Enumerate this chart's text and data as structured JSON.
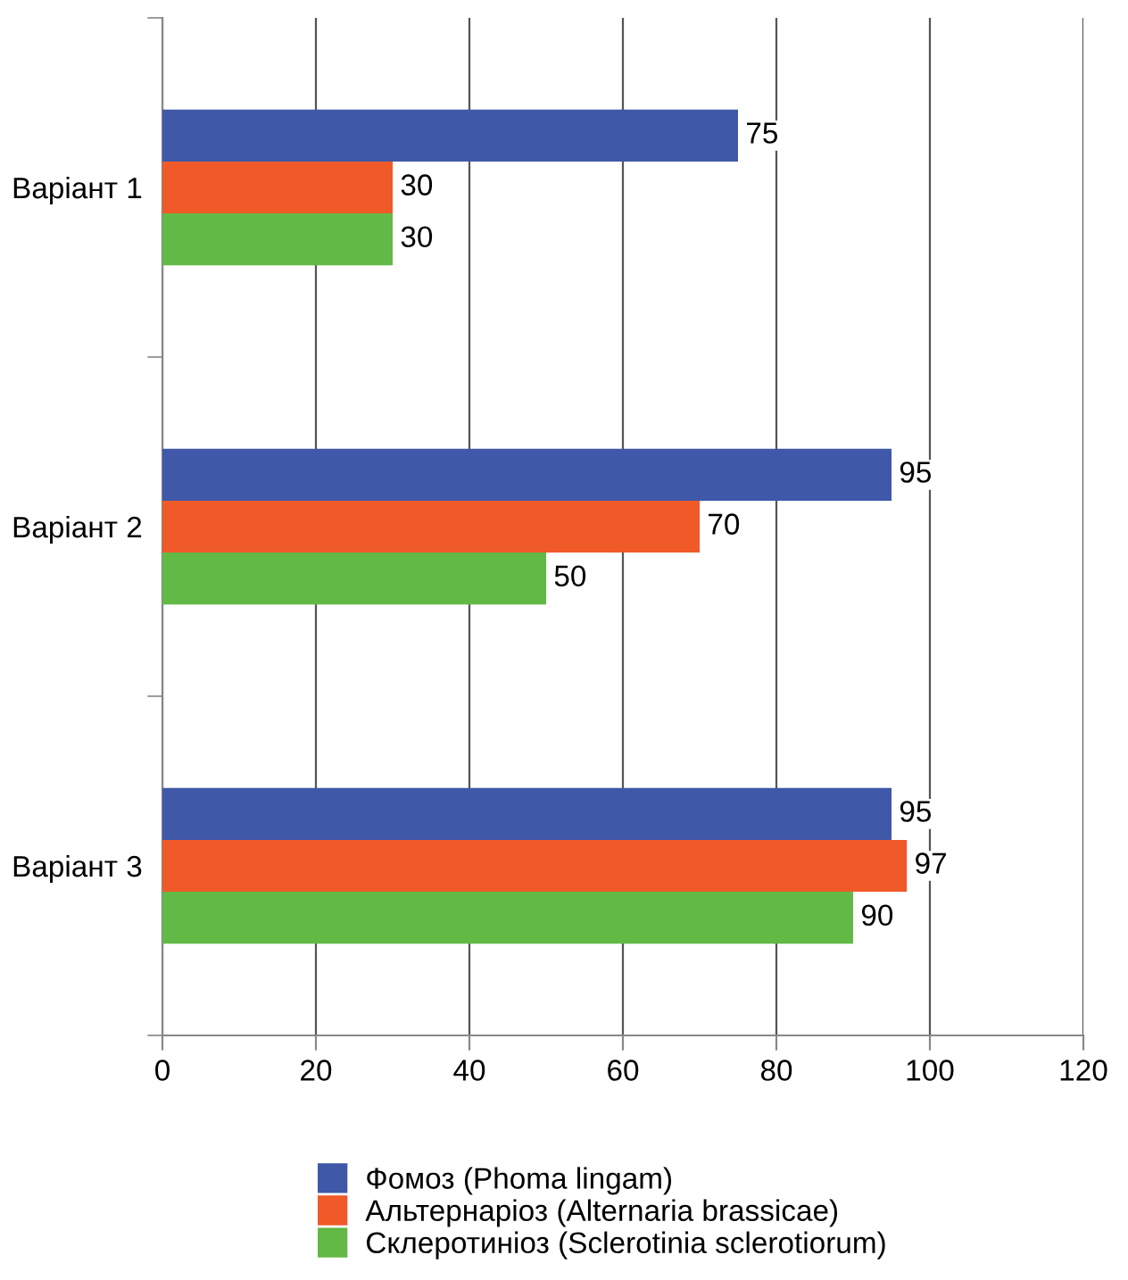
{
  "chart_data": {
    "type": "bar",
    "orientation": "horizontal",
    "categories": [
      "Варіант 1",
      "Варіант 2",
      "Варіант 3"
    ],
    "series": [
      {
        "name": "Фомоз (Phoma lingam)",
        "color": "#3f58a8",
        "values": [
          75,
          95,
          95
        ]
      },
      {
        "name": "Альтернаріоз (Alternaria brassicae)",
        "color": "#f05a28",
        "values": [
          30,
          70,
          97
        ]
      },
      {
        "name": "Склеротиніоз (Sclerotinia sclerotiorum)",
        "color": "#62b946",
        "values": [
          30,
          50,
          90
        ]
      }
    ],
    "xlim": [
      0,
      120
    ],
    "xticks": [
      0,
      20,
      40,
      60,
      80,
      100,
      120
    ],
    "grid": "x",
    "legend": "bottom",
    "data_labels": true
  }
}
